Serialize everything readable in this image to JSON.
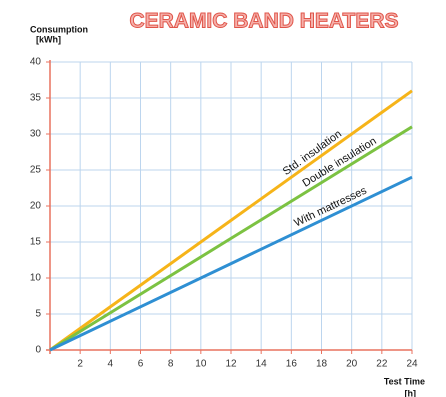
{
  "chart_data": {
    "type": "line",
    "title": "CERAMIC BAND HEATERS",
    "y_label": [
      "Consumption",
      "[kWh]"
    ],
    "x_label": [
      "Test Time",
      "[h]"
    ],
    "x": [
      0,
      12,
      24
    ],
    "series": [
      {
        "name": "Std. insulation",
        "color": "#f6b419",
        "values": [
          0,
          18,
          36
        ]
      },
      {
        "name": "Double insulation",
        "color": "#7cc242",
        "values": [
          0,
          15.5,
          31
        ]
      },
      {
        "name": "With mattresses",
        "color": "#2e8fd3",
        "values": [
          0,
          12,
          24
        ]
      }
    ],
    "xlim": [
      0,
      24
    ],
    "xticks": [
      2,
      4,
      6,
      8,
      10,
      12,
      14,
      16,
      18,
      20,
      22,
      24
    ],
    "ylim": [
      0,
      40
    ],
    "yticks": [
      0,
      5,
      10,
      15,
      20,
      25,
      30,
      35,
      40
    ],
    "grid": true
  }
}
